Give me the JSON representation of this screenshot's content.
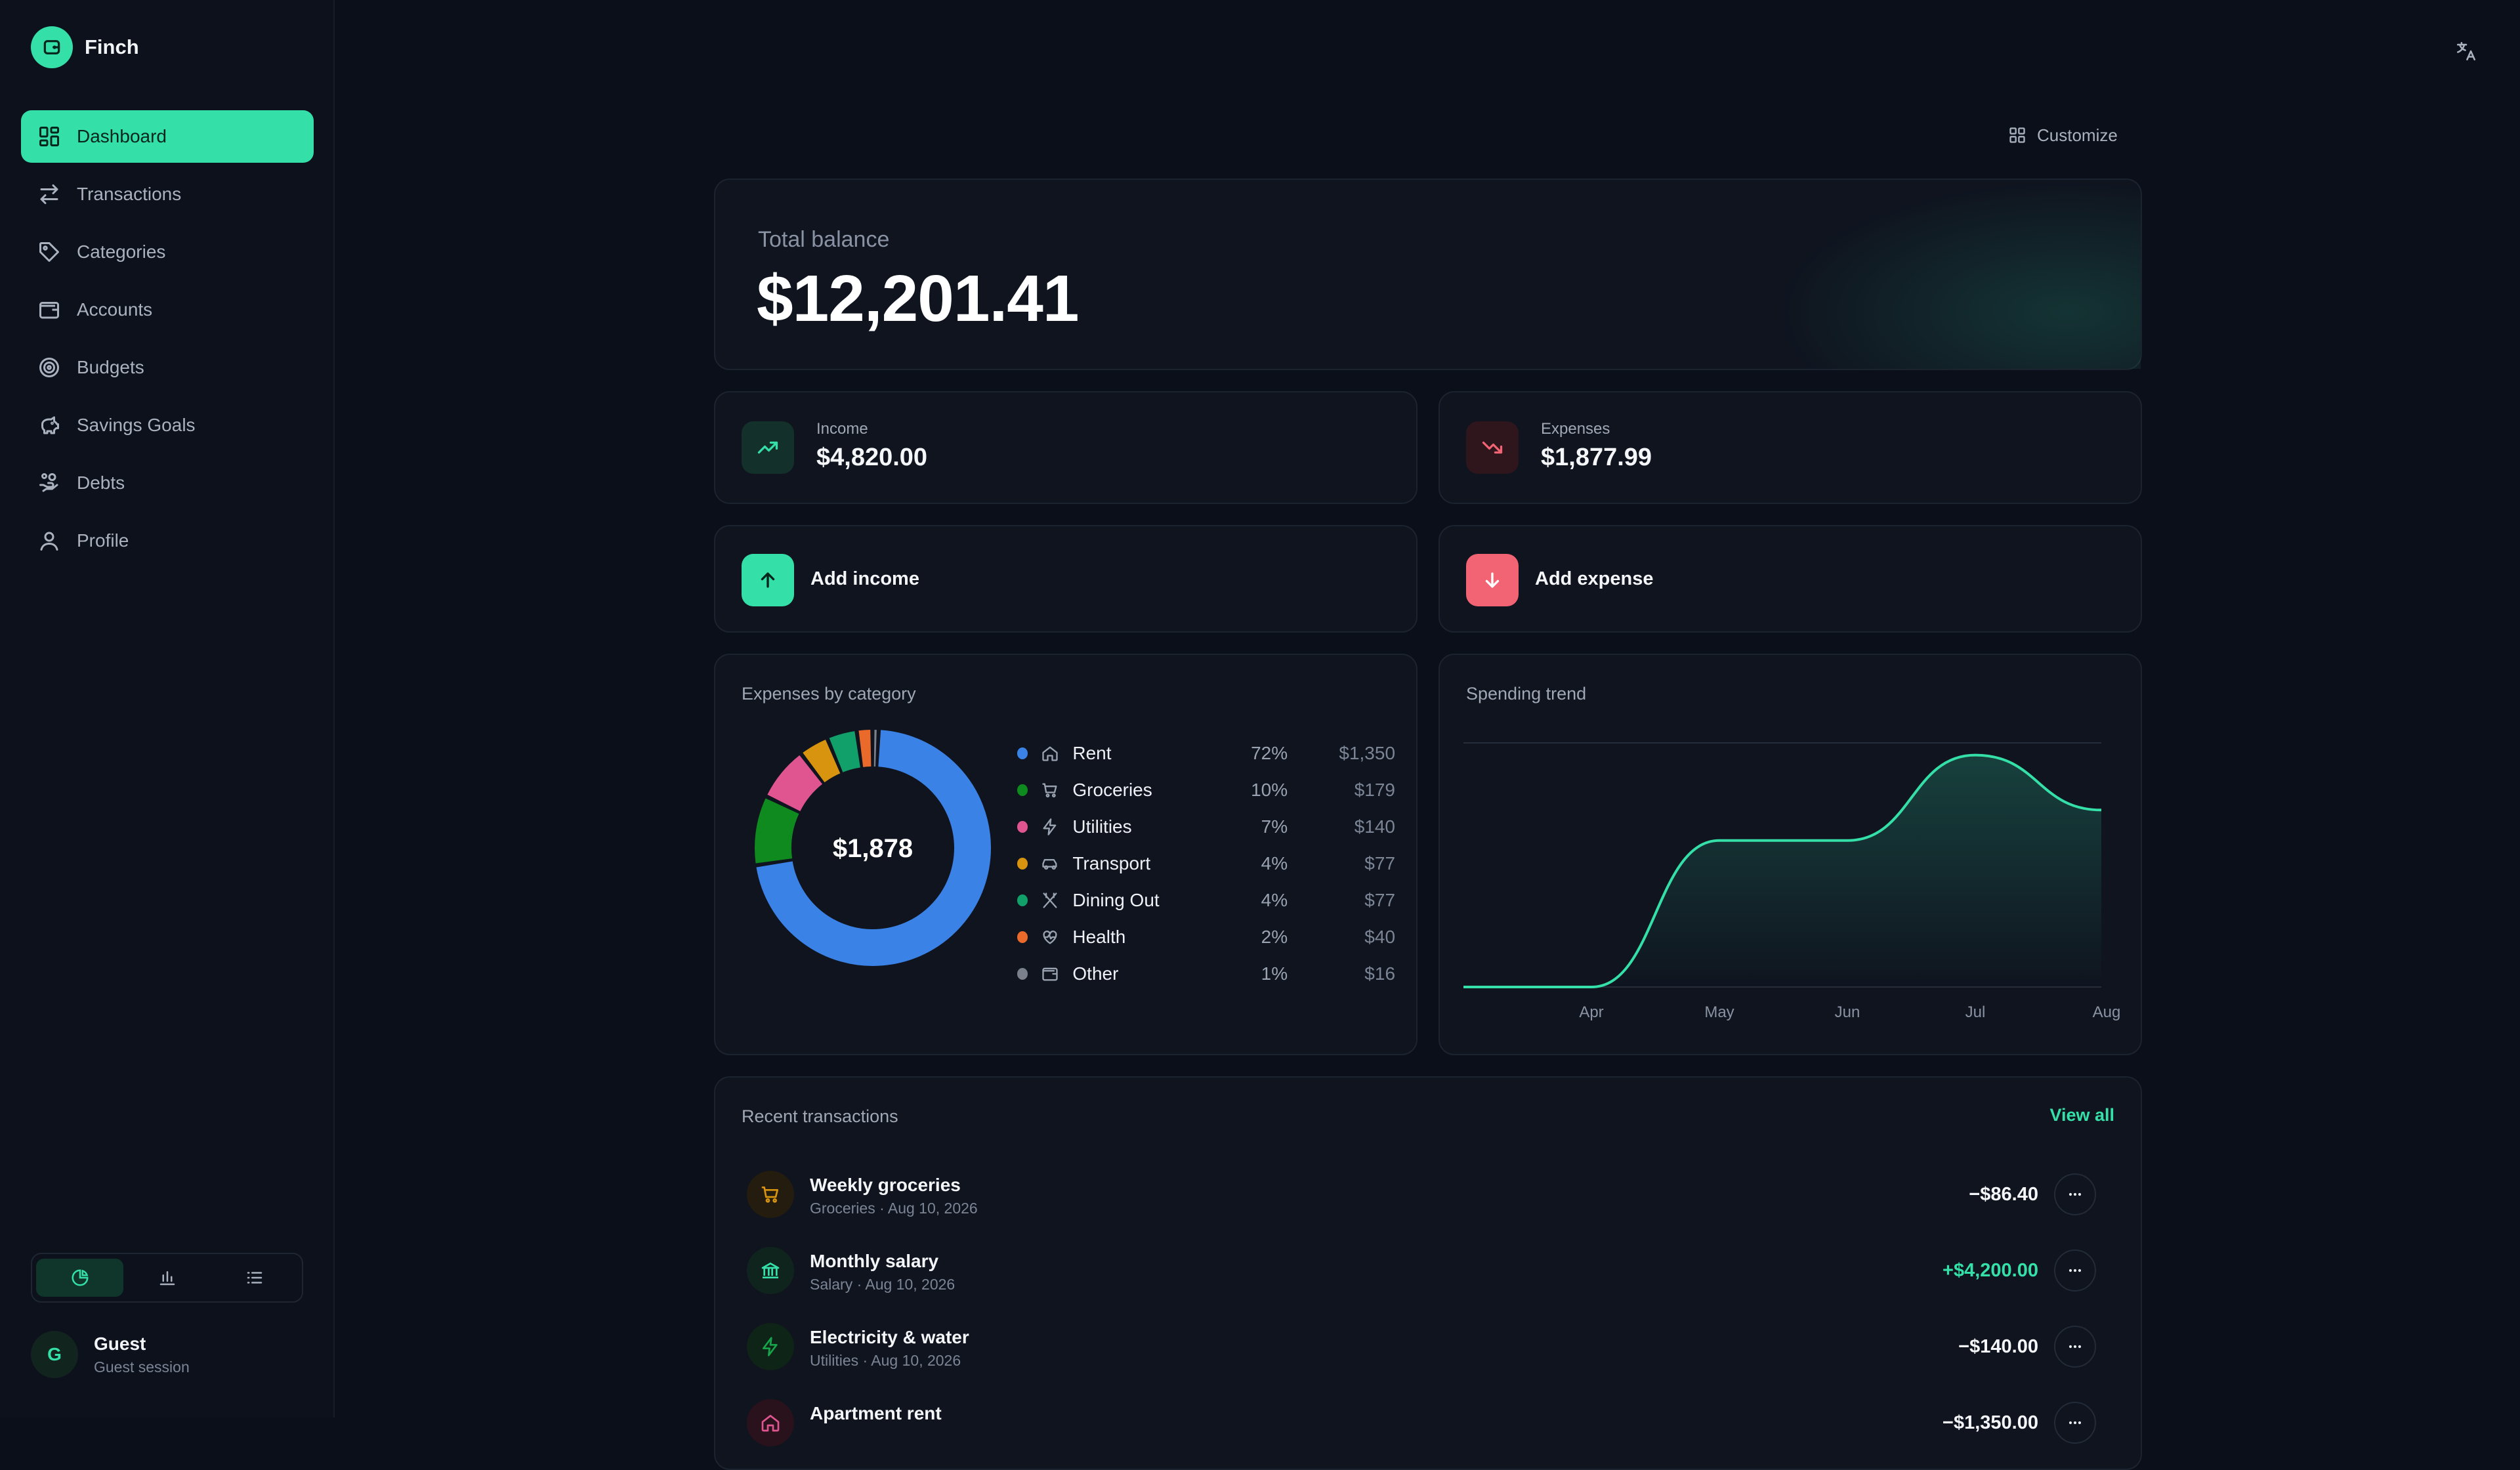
{
  "app": {
    "name": "Finch"
  },
  "sidebar": {
    "items": [
      {
        "label": "Dashboard",
        "icon": "dashboard-icon",
        "active": true
      },
      {
        "label": "Transactions",
        "icon": "arrows-icon"
      },
      {
        "label": "Categories",
        "icon": "tag-icon"
      },
      {
        "label": "Accounts",
        "icon": "wallet-icon"
      },
      {
        "label": "Budgets",
        "icon": "target-icon"
      },
      {
        "label": "Savings Goals",
        "icon": "piggy-bank-icon"
      },
      {
        "label": "Debts",
        "icon": "hand-coins-icon"
      },
      {
        "label": "Profile",
        "icon": "user-icon"
      }
    ],
    "view_switch": [
      "pie-chart-icon",
      "bar-chart-icon",
      "list-icon"
    ],
    "user": {
      "initial": "G",
      "name": "Guest",
      "subtitle": "Guest session"
    }
  },
  "toolbar": {
    "customize_label": "Customize"
  },
  "balance": {
    "label": "Total balance",
    "value": "$12,201.41"
  },
  "income": {
    "label": "Income",
    "value": "$4,820.00"
  },
  "expenses": {
    "label": "Expenses",
    "value": "$1,877.99"
  },
  "actions": {
    "add_income": "Add income",
    "add_expense": "Add expense"
  },
  "expenses_by_category": {
    "title": "Expenses by category",
    "total": "$1,878",
    "categories": [
      {
        "name": "Rent",
        "pct": "72%",
        "amount": "$1,350",
        "value": 1350,
        "color": "#3b82e6",
        "icon": "home-icon"
      },
      {
        "name": "Groceries",
        "pct": "10%",
        "amount": "$179",
        "value": 179,
        "color": "#0f8a1e",
        "icon": "cart-icon"
      },
      {
        "name": "Utilities",
        "pct": "7%",
        "amount": "$140",
        "value": 140,
        "color": "#e05590",
        "icon": "bolt-icon"
      },
      {
        "name": "Transport",
        "pct": "4%",
        "amount": "$77",
        "value": 77,
        "color": "#d9940f",
        "icon": "car-icon"
      },
      {
        "name": "Dining Out",
        "pct": "4%",
        "amount": "$77",
        "value": 77,
        "color": "#12a06a",
        "icon": "utensils-icon"
      },
      {
        "name": "Health",
        "pct": "2%",
        "amount": "$40",
        "value": 40,
        "color": "#ea6a2c",
        "icon": "heart-pulse-icon"
      },
      {
        "name": "Other",
        "pct": "1%",
        "amount": "$16",
        "value": 16,
        "color": "#7a808c",
        "icon": "wallet-icon"
      }
    ]
  },
  "spending_trend": {
    "title": "Spending trend"
  },
  "chart_data": {
    "type": "area",
    "x": [
      "Apr",
      "May",
      "Jun",
      "Jul",
      "Aug"
    ],
    "values": [
      0,
      1200,
      1200,
      1900,
      1450
    ],
    "ylim": [
      0,
      2000
    ],
    "grid": false,
    "color": "#34e0a8"
  },
  "recent": {
    "title": "Recent transactions",
    "view_all": "View all",
    "transactions": [
      {
        "name": "Weekly groceries",
        "meta": "Groceries · Aug 10, 2026",
        "amount": "−$86.40",
        "positive": false,
        "icon": "cart-icon",
        "icon_color": "#d9940f",
        "icon_bg": "#241c0e"
      },
      {
        "name": "Monthly salary",
        "meta": "Salary · Aug 10, 2026",
        "amount": "+$4,200.00",
        "positive": true,
        "icon": "bank-icon",
        "icon_color": "#34e0a8",
        "icon_bg": "#10241e"
      },
      {
        "name": "Electricity & water",
        "meta": "Utilities · Aug 10, 2026",
        "amount": "−$140.00",
        "positive": false,
        "icon": "bolt-icon",
        "icon_color": "#16a34a",
        "icon_bg": "#0e2416"
      },
      {
        "name": "Apartment rent",
        "meta": "",
        "amount": "−$1,350.00",
        "positive": false,
        "icon": "home-icon",
        "icon_color": "#e05590",
        "icon_bg": "#2a121c"
      }
    ]
  }
}
